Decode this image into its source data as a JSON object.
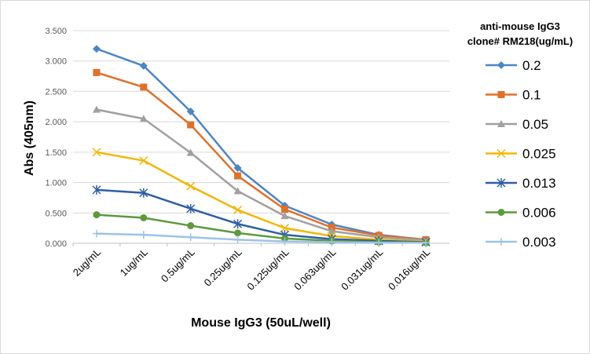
{
  "chart_data": {
    "type": "line",
    "title": "",
    "xlabel": "Mouse IgG3 (50uL/well)",
    "ylabel": "Abs (405nm)",
    "ylim": [
      0,
      3.5
    ],
    "yticks": [
      "0.000",
      "0.500",
      "1.000",
      "1.500",
      "2.000",
      "2.500",
      "3.000",
      "3.500"
    ],
    "grid": true,
    "legend_position": "right",
    "legend_title_lines": [
      "anti-mouse IgG3",
      "clone# RM218(ug/mL)"
    ],
    "categories": [
      "2ug/mL",
      "1ug/mL",
      "0.5ug/mL",
      "0.25ug/mL",
      "0.125ug/mL",
      "0.063ug/mL",
      "0.031ug/mL",
      "0.016ug/mL"
    ],
    "series": [
      {
        "name": "0.2",
        "color": "#4a86c6",
        "marker": "diamond",
        "values": [
          3.2,
          2.92,
          2.17,
          1.24,
          0.62,
          0.31,
          0.14,
          0.06
        ]
      },
      {
        "name": "0.1",
        "color": "#e0702a",
        "marker": "square",
        "values": [
          2.81,
          2.57,
          1.95,
          1.11,
          0.56,
          0.26,
          0.13,
          0.06
        ]
      },
      {
        "name": "0.05",
        "color": "#a0a0a0",
        "marker": "triangle",
        "values": [
          2.2,
          2.05,
          1.49,
          0.86,
          0.45,
          0.2,
          0.1,
          0.05
        ]
      },
      {
        "name": "0.025",
        "color": "#f2b705",
        "marker": "x",
        "values": [
          1.5,
          1.36,
          0.94,
          0.55,
          0.25,
          0.12,
          0.06,
          0.03
        ]
      },
      {
        "name": "0.013",
        "color": "#2f5fa5",
        "marker": "star",
        "values": [
          0.88,
          0.83,
          0.57,
          0.32,
          0.14,
          0.07,
          0.04,
          0.02
        ]
      },
      {
        "name": "0.006",
        "color": "#5c9a3c",
        "marker": "circle",
        "values": [
          0.47,
          0.42,
          0.29,
          0.17,
          0.08,
          0.04,
          0.02,
          0.01
        ]
      },
      {
        "name": "0.003",
        "color": "#9dc3e6",
        "marker": "plus",
        "values": [
          0.16,
          0.14,
          0.1,
          0.06,
          0.03,
          0.02,
          0.01,
          0.01
        ]
      }
    ]
  }
}
